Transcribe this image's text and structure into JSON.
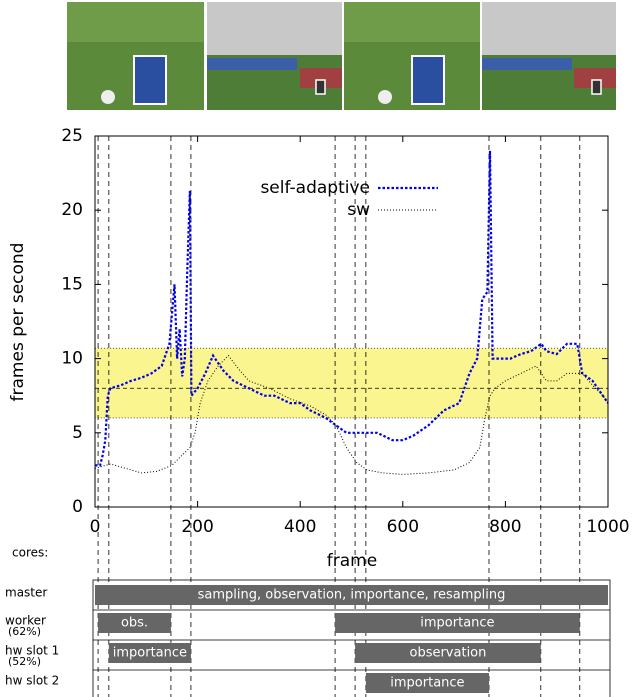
{
  "chart_data": {
    "type": "line",
    "xlabel": "frame",
    "ylabel": "frames per second",
    "xlim": [
      0,
      1000
    ],
    "ylim": [
      0,
      25
    ],
    "xticks": [
      0,
      200,
      400,
      600,
      800,
      1000
    ],
    "yticks": [
      0,
      5,
      10,
      15,
      20,
      25
    ],
    "legend": "top-right",
    "highlight": {
      "from": 6,
      "to": 10.7,
      "mid": 8,
      "color": "#fbf58f"
    },
    "markers": [
      6,
      27,
      148,
      187,
      468,
      507,
      528,
      768,
      869,
      945
    ],
    "series": [
      {
        "name": "self-adaptive",
        "color": "#0000ee",
        "x": [
          0,
          10,
          15,
          20,
          25,
          30,
          50,
          70,
          90,
          110,
          130,
          145,
          155,
          160,
          165,
          170,
          175,
          180,
          185,
          188,
          200,
          215,
          230,
          250,
          270,
          300,
          330,
          350,
          380,
          400,
          420,
          450,
          470,
          490,
          520,
          550,
          580,
          600,
          620,
          650,
          680,
          710,
          730,
          745,
          755,
          765,
          770,
          775,
          790,
          810,
          830,
          850,
          870,
          880,
          900,
          920,
          940,
          950,
          970,
          990,
          1000
        ],
        "values": [
          2.8,
          2.8,
          3.5,
          4.5,
          7.5,
          8,
          8.2,
          8.5,
          8.7,
          9,
          9.5,
          11,
          15,
          10,
          12,
          8.8,
          10,
          16,
          21.3,
          7.5,
          8,
          9,
          10.2,
          9.2,
          8.5,
          8,
          7.5,
          7.5,
          7,
          7,
          6.5,
          6,
          5.5,
          5,
          5,
          5,
          4.5,
          4.5,
          4.8,
          5.5,
          6.5,
          7,
          9,
          10,
          14,
          14.5,
          24,
          10,
          10,
          10,
          10.3,
          10.5,
          11,
          10.5,
          10.3,
          11,
          11,
          9,
          8.5,
          7.5,
          7
        ]
      },
      {
        "name": "sw",
        "color": "#000000",
        "x": [
          0,
          30,
          60,
          90,
          120,
          150,
          170,
          185,
          195,
          205,
          220,
          240,
          260,
          280,
          300,
          340,
          380,
          420,
          450,
          470,
          490,
          510,
          530,
          560,
          600,
          650,
          700,
          730,
          750,
          760,
          770,
          780,
          800,
          830,
          860,
          880,
          900,
          920,
          950,
          970,
          990,
          1000
        ],
        "values": [
          2.6,
          2.9,
          2.6,
          2.3,
          2.4,
          2.8,
          3.5,
          4,
          5,
          7,
          8.5,
          9.5,
          10.2,
          9.3,
          8.5,
          8,
          7.3,
          6.8,
          6.2,
          5.5,
          4,
          3,
          2.5,
          2.3,
          2.2,
          2.3,
          2.5,
          3,
          4,
          6,
          7.5,
          8,
          8.5,
          9,
          9.5,
          8.5,
          8.5,
          9,
          9,
          8.2,
          7.5,
          7
        ]
      }
    ]
  },
  "timeline": {
    "title": "cores:",
    "rows": [
      {
        "name": "master",
        "bars": [
          {
            "label": "sampling, observation, importance, resampling",
            "start": 0,
            "end": 1000
          }
        ]
      },
      {
        "name": "worker",
        "share": "(62%)",
        "bars": [
          {
            "label": "obs.",
            "start": 6,
            "end": 148
          },
          {
            "label": "importance",
            "start": 468,
            "end": 945
          }
        ]
      },
      {
        "name": "hw slot 1",
        "share": "(52%)",
        "bars": [
          {
            "label": "importance",
            "start": 27,
            "end": 187
          },
          {
            "label": "observation",
            "start": 507,
            "end": 869
          }
        ]
      },
      {
        "name": "hw slot 2",
        "bars": [
          {
            "label": "importance",
            "start": 528,
            "end": 768
          }
        ]
      }
    ]
  }
}
